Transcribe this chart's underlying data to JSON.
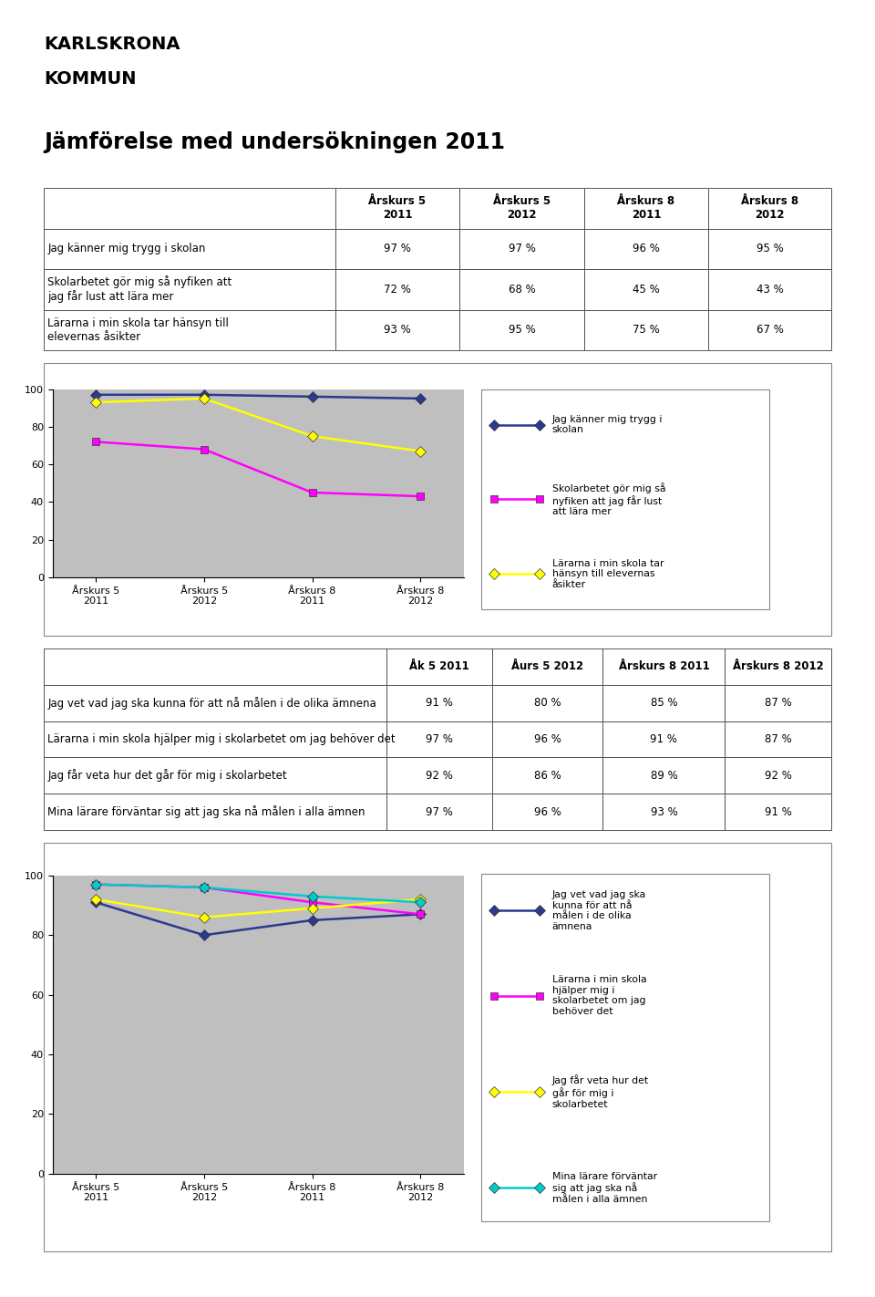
{
  "title": "Jämförelse med undersökningen 2011",
  "header_cols": [
    "",
    "Årskurs 5\n2011",
    "Årskurs 5\n2012",
    "Årskurs 8\n2011",
    "Årskurs 8\n2012"
  ],
  "table1_rows": [
    [
      "Jag känner mig trygg i skolan",
      "97 %",
      "97 %",
      "96 %",
      "95 %"
    ],
    [
      "Skolarbetet gör mig så nyfiken att\njag får lust att lära mer",
      "72 %",
      "68 %",
      "45 %",
      "43 %"
    ],
    [
      "Lärarna i min skola tar hänsyn till\nelevernas åsikter",
      "93 %",
      "95 %",
      "75 %",
      "67 %"
    ]
  ],
  "chart1_xticklabels": [
    "Årskurs 5\n2011",
    "Årskurs 5\n2012",
    "Årskurs 8\n2011",
    "Årskurs 8\n2012"
  ],
  "chart1_series": [
    {
      "label": "Jag känner mig trygg i\nskolan",
      "values": [
        97,
        97,
        96,
        95
      ],
      "color": "#2B3990",
      "marker": "D"
    },
    {
      "label": "Skolarbetet gör mig så\nnyfiken att jag får lust\natt lära mer",
      "values": [
        72,
        68,
        45,
        43
      ],
      "color": "#FF00FF",
      "marker": "s"
    },
    {
      "label": "Lärarna i min skola tar\nhänsyn till elevernas\nåsikter",
      "values": [
        93,
        95,
        75,
        67
      ],
      "color": "#FFFF00",
      "marker": "D"
    }
  ],
  "chart1_ylim": [
    0,
    100
  ],
  "header2_cols": [
    "",
    "Åk 5 2011",
    "Åurs 5 2012",
    "Årskurs 8 2011",
    "Årskurs 8 2012"
  ],
  "table2_rows": [
    [
      "Jag vet vad jag ska kunna för att nå målen i de olika ämnena",
      "91 %",
      "80 %",
      "85 %",
      "87 %"
    ],
    [
      "Lärarna i min skola hjälper mig i skolarbetet om jag behöver det",
      "97 %",
      "96 %",
      "91 %",
      "87 %"
    ],
    [
      "Jag får veta hur det går för mig i skolarbetet",
      "92 %",
      "86 %",
      "89 %",
      "92 %"
    ],
    [
      "Mina lärare förväntar sig att jag ska nå målen i alla ämnen",
      "97 %",
      "96 %",
      "93 %",
      "91 %"
    ]
  ],
  "chart2_xticklabels": [
    "Årskurs 5\n2011",
    "Årskurs 5\n2012",
    "Årskurs 8\n2011",
    "Årskurs 8\n2012"
  ],
  "chart2_series": [
    {
      "label": "Jag vet vad jag ska\nkunna för att nå\nmålen i de olika\nämnena",
      "values": [
        91,
        80,
        85,
        87
      ],
      "color": "#2B3990",
      "marker": "D"
    },
    {
      "label": "Lärarna i min skola\nhjälper mig i\nskolarbetet om jag\nbehöver det",
      "values": [
        97,
        96,
        91,
        87
      ],
      "color": "#FF00FF",
      "marker": "s"
    },
    {
      "label": "Jag får veta hur det\ngår för mig i\nskolarbetet",
      "values": [
        92,
        86,
        89,
        92
      ],
      "color": "#FFFF00",
      "marker": "D"
    },
    {
      "label": "Mina lärare förväntar\nsig att jag ska nå\nmålen i alla ämnen",
      "values": [
        97,
        96,
        93,
        91
      ],
      "color": "#00CCCC",
      "marker": "D"
    }
  ],
  "chart2_ylim": [
    0,
    100
  ],
  "bg_color": "#FFFFFF",
  "plot_bg_color": "#BFBFBF",
  "font_size_title": 17,
  "font_size_table": 8.5,
  "font_size_axis": 8
}
